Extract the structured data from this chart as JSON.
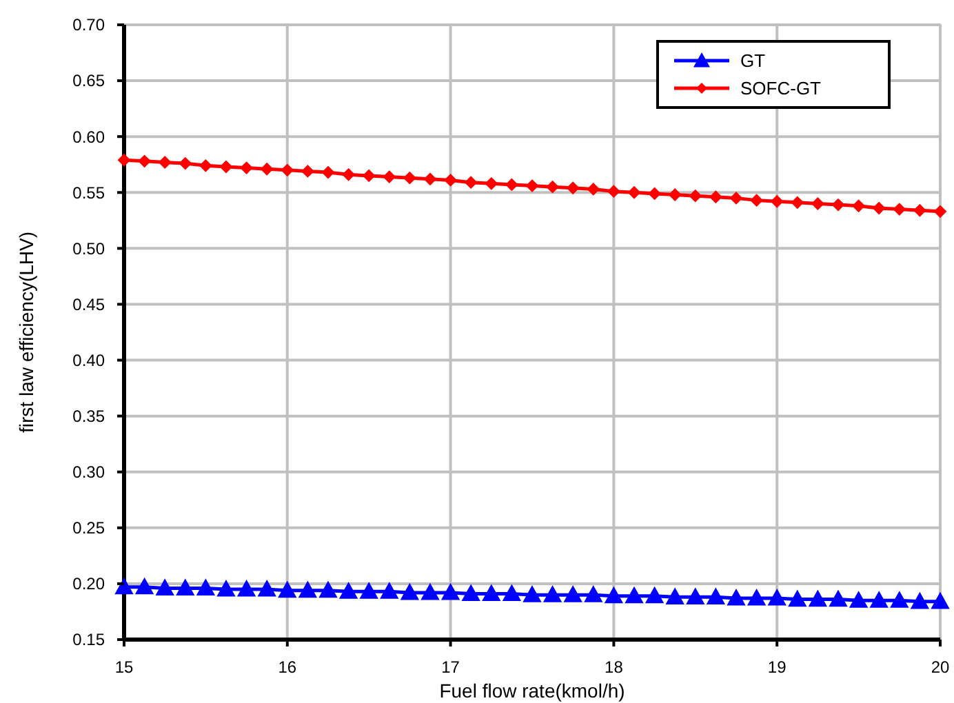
{
  "chart_data": {
    "type": "line",
    "xlabel": "Fuel flow rate(kmol/h)",
    "ylabel": "first law efficiency(LHV)",
    "x": [
      15,
      15.125,
      15.25,
      15.375,
      15.5,
      15.625,
      15.75,
      15.875,
      16,
      16.125,
      16.25,
      16.375,
      16.5,
      16.625,
      16.75,
      16.875,
      17,
      17.125,
      17.25,
      17.375,
      17.5,
      17.625,
      17.75,
      17.875,
      18,
      18.125,
      18.25,
      18.375,
      18.5,
      18.625,
      18.75,
      18.875,
      19,
      19.125,
      19.25,
      19.375,
      19.5,
      19.625,
      19.75,
      19.875,
      20
    ],
    "series": [
      {
        "name": "GT",
        "color": "#0000ff",
        "marker": "triangle",
        "values": [
          0.197,
          0.197,
          0.196,
          0.196,
          0.196,
          0.195,
          0.195,
          0.195,
          0.194,
          0.194,
          0.194,
          0.193,
          0.193,
          0.193,
          0.192,
          0.192,
          0.192,
          0.191,
          0.191,
          0.191,
          0.19,
          0.19,
          0.19,
          0.19,
          0.189,
          0.189,
          0.189,
          0.188,
          0.188,
          0.188,
          0.187,
          0.187,
          0.187,
          0.186,
          0.186,
          0.186,
          0.185,
          0.185,
          0.185,
          0.184,
          0.184
        ]
      },
      {
        "name": "SOFC-GT",
        "color": "#ff0000",
        "marker": "diamond",
        "values": [
          0.579,
          0.578,
          0.577,
          0.576,
          0.574,
          0.573,
          0.572,
          0.571,
          0.57,
          0.569,
          0.568,
          0.566,
          0.565,
          0.564,
          0.563,
          0.562,
          0.561,
          0.559,
          0.558,
          0.557,
          0.556,
          0.555,
          0.554,
          0.553,
          0.551,
          0.55,
          0.549,
          0.548,
          0.547,
          0.546,
          0.545,
          0.543,
          0.542,
          0.541,
          0.54,
          0.539,
          0.538,
          0.536,
          0.535,
          0.534,
          0.533
        ]
      }
    ],
    "xlim": [
      15,
      20
    ],
    "xticks": [
      15,
      16,
      17,
      18,
      19,
      20
    ],
    "ylim": [
      0.15,
      0.7
    ],
    "yticks": [
      0.15,
      {
        "value": 0.2,
        "label": "0.20"
      },
      0.25,
      {
        "value": 0.3,
        "label": "0.30"
      },
      0.35,
      {
        "value": 0.4,
        "label": "0.40"
      },
      0.45,
      {
        "value": 0.5,
        "label": "0.50"
      },
      0.55,
      {
        "value": 0.6,
        "label": "0.60"
      },
      0.65,
      {
        "value": 0.7,
        "label": "0.70"
      }
    ],
    "grid": true,
    "legend": "top right",
    "line_style": "solid"
  }
}
